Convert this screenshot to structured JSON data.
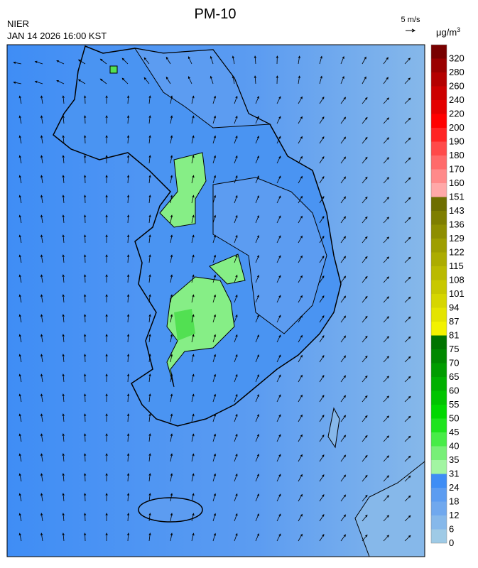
{
  "header": {
    "title": "PM-10",
    "agency": "NIER",
    "datetime": "JAN 14 2026 16:00 KST",
    "wind_scale": "5 m/s"
  },
  "colorbar": {
    "unit": "μg/m",
    "unit_sup": "3",
    "levels": [
      {
        "value": 0,
        "color": "#9ecae6"
      },
      {
        "value": 6,
        "color": "#86b8ea"
      },
      {
        "value": 12,
        "color": "#70a8ee"
      },
      {
        "value": 18,
        "color": "#5c9cf1"
      },
      {
        "value": 24,
        "color": "#3f8df5"
      },
      {
        "value": 31,
        "color": "#a2f5a2"
      },
      {
        "value": 35,
        "color": "#78ef78"
      },
      {
        "value": 40,
        "color": "#48ec48"
      },
      {
        "value": 45,
        "color": "#1ee41e"
      },
      {
        "value": 50,
        "color": "#00d800"
      },
      {
        "value": 55,
        "color": "#00c400"
      },
      {
        "value": 60,
        "color": "#00b000"
      },
      {
        "value": 65,
        "color": "#009c00"
      },
      {
        "value": 70,
        "color": "#008800"
      },
      {
        "value": 75,
        "color": "#007400"
      },
      {
        "value": 81,
        "color": "#f2f200"
      },
      {
        "value": 87,
        "color": "#e4e400"
      },
      {
        "value": 94,
        "color": "#d6d600"
      },
      {
        "value": 101,
        "color": "#c8c800"
      },
      {
        "value": 108,
        "color": "#baba00"
      },
      {
        "value": 115,
        "color": "#acac00"
      },
      {
        "value": 122,
        "color": "#9e9e00"
      },
      {
        "value": 129,
        "color": "#8e8e00"
      },
      {
        "value": 136,
        "color": "#7e7e00"
      },
      {
        "value": 143,
        "color": "#6e6e00"
      },
      {
        "value": 151,
        "color": "#ffa8a8"
      },
      {
        "value": 160,
        "color": "#ff8a8a"
      },
      {
        "value": 170,
        "color": "#ff6a6a"
      },
      {
        "value": 180,
        "color": "#ff4a4a"
      },
      {
        "value": 190,
        "color": "#ff2424"
      },
      {
        "value": 200,
        "color": "#ff0000"
      },
      {
        "value": 220,
        "color": "#e40000"
      },
      {
        "value": 240,
        "color": "#cc0000"
      },
      {
        "value": 260,
        "color": "#b40000"
      },
      {
        "value": 280,
        "color": "#9a0000"
      },
      {
        "value": 320,
        "color": "#780000"
      }
    ]
  }
}
